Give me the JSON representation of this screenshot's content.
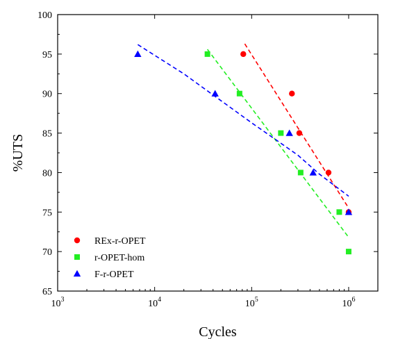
{
  "chart_data": {
    "type": "scatter",
    "title": "",
    "xlabel": "Cycles",
    "ylabel": "%UTS",
    "x_scale": "log",
    "xlim": [
      1000,
      2000000
    ],
    "ylim": [
      65,
      100
    ],
    "x_ticks": [
      1000,
      10000,
      100000,
      1000000
    ],
    "x_tick_labels": [
      {
        "base": "10",
        "exp": "3"
      },
      {
        "base": "10",
        "exp": "4"
      },
      {
        "base": "10",
        "exp": "5"
      },
      {
        "base": "10",
        "exp": "6"
      }
    ],
    "y_ticks": [
      65,
      70,
      75,
      80,
      85,
      90,
      95,
      100
    ],
    "y_tick_labels": [
      "65",
      "70",
      "75",
      "80",
      "85",
      "90",
      "95",
      "100"
    ],
    "grid": false,
    "legend_position": "bottom-left",
    "series": [
      {
        "name": "REx-r-OPET",
        "marker": "circle",
        "color": "#ff0000",
        "points": [
          [
            82000,
            95
          ],
          [
            260000,
            90
          ],
          [
            310000,
            85
          ],
          [
            620000,
            80
          ],
          [
            1000000,
            75
          ]
        ],
        "trend": [
          [
            85000,
            96.3
          ],
          [
            1000000,
            75.5
          ]
        ]
      },
      {
        "name": "r-OPET-hom",
        "marker": "square",
        "color": "#22ee22",
        "points": [
          [
            35000,
            95
          ],
          [
            75000,
            90
          ],
          [
            200000,
            85
          ],
          [
            320000,
            80
          ],
          [
            800000,
            75
          ],
          [
            1000000,
            70
          ]
        ],
        "trend": [
          [
            35000,
            95.6
          ],
          [
            1000000,
            71.8
          ]
        ]
      },
      {
        "name": "F-r-OPET",
        "marker": "triangle",
        "color": "#0000ff",
        "points": [
          [
            6700,
            95
          ],
          [
            42000,
            90
          ],
          [
            245000,
            85
          ],
          [
            430000,
            80
          ],
          [
            1000000,
            75
          ]
        ],
        "trend": [
          [
            6700,
            96.2
          ],
          [
            20000,
            92.5
          ],
          [
            100000,
            86.3
          ],
          [
            300000,
            82.2
          ],
          [
            500000,
            79.8
          ],
          [
            1000000,
            77.0
          ]
        ]
      }
    ]
  }
}
